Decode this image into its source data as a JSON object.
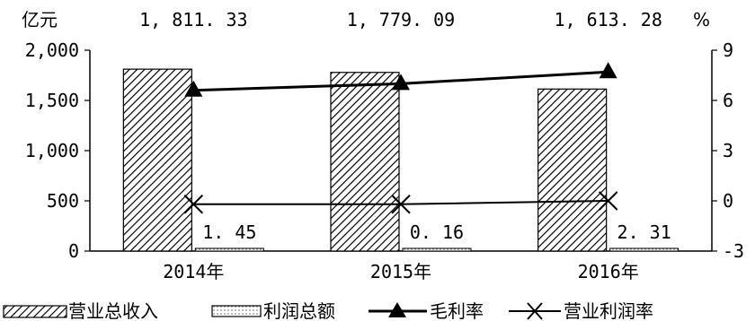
{
  "chart_data": {
    "type": "bar",
    "categories": [
      "2014年",
      "2015年",
      "2016年"
    ],
    "left_axis_unit": "亿元",
    "right_axis_unit": "%",
    "left_ylim": [
      0,
      2000
    ],
    "left_ticks": [
      "0",
      "500",
      "1,000",
      "1,500",
      "2,000"
    ],
    "right_ylim": [
      -3,
      9
    ],
    "right_ticks": [
      "-3",
      "0",
      "3",
      "6",
      "9"
    ],
    "grid": false,
    "legend_position": "bottom",
    "series": [
      {
        "name": "营业总收入",
        "type": "bar",
        "axis": "left",
        "values": [
          1811.33,
          1779.09,
          1613.28
        ],
        "labels": [
          "1, 811. 33",
          "1, 779. 09",
          "1, 613. 28"
        ]
      },
      {
        "name": "利润总额",
        "type": "bar",
        "axis": "left",
        "values": [
          1.45,
          0.16,
          2.31
        ],
        "labels": [
          "1. 45",
          "0. 16",
          "2. 31"
        ]
      },
      {
        "name": "毛利率",
        "type": "line",
        "axis": "right",
        "marker": "triangle",
        "values": [
          6.6,
          7.0,
          7.7
        ]
      },
      {
        "name": "营业利润率",
        "type": "line",
        "axis": "right",
        "marker": "x",
        "values": [
          -0.2,
          -0.2,
          0.0
        ]
      }
    ]
  }
}
